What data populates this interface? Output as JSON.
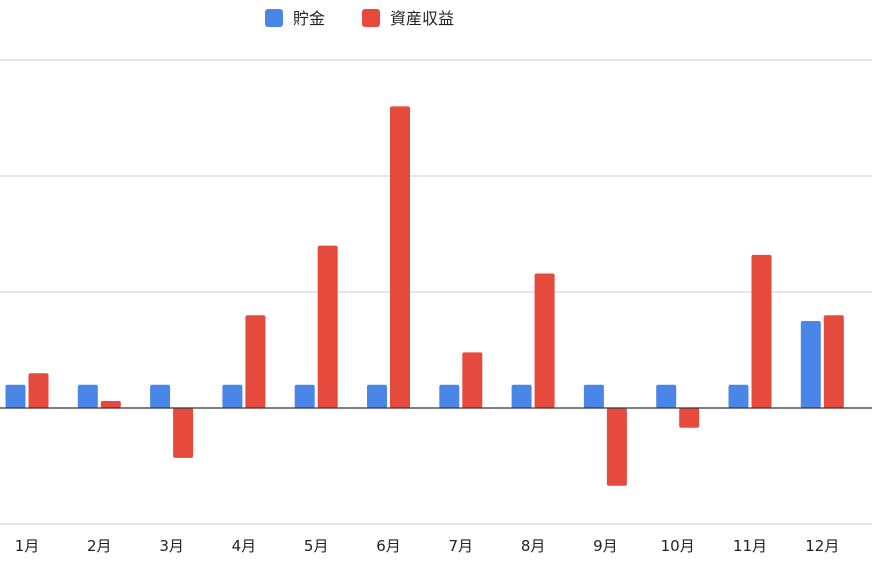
{
  "chart_data": {
    "type": "bar",
    "categories": [
      "1月",
      "2月",
      "3月",
      "4月",
      "5月",
      "6月",
      "7月",
      "8月",
      "9月",
      "10月",
      "11月",
      "12月"
    ],
    "series": [
      {
        "name": "貯金",
        "color": "#4a86e8",
        "values": [
          1.0,
          1.0,
          1.0,
          1.0,
          1.0,
          1.0,
          1.0,
          1.0,
          1.0,
          1.0,
          1.0,
          3.75
        ]
      },
      {
        "name": "資産収益",
        "color": "#e64a3c",
        "values": [
          1.5,
          0.3,
          -2.15,
          4.0,
          7.0,
          13.0,
          2.4,
          5.8,
          -3.35,
          -0.85,
          6.6,
          4.0
        ]
      }
    ],
    "ylim": [
      -5,
      15
    ],
    "gridlines": [
      -5,
      0,
      5,
      10,
      15
    ],
    "grid": true,
    "legend": "top-center",
    "title": "",
    "xlabel": "",
    "ylabel": ""
  }
}
